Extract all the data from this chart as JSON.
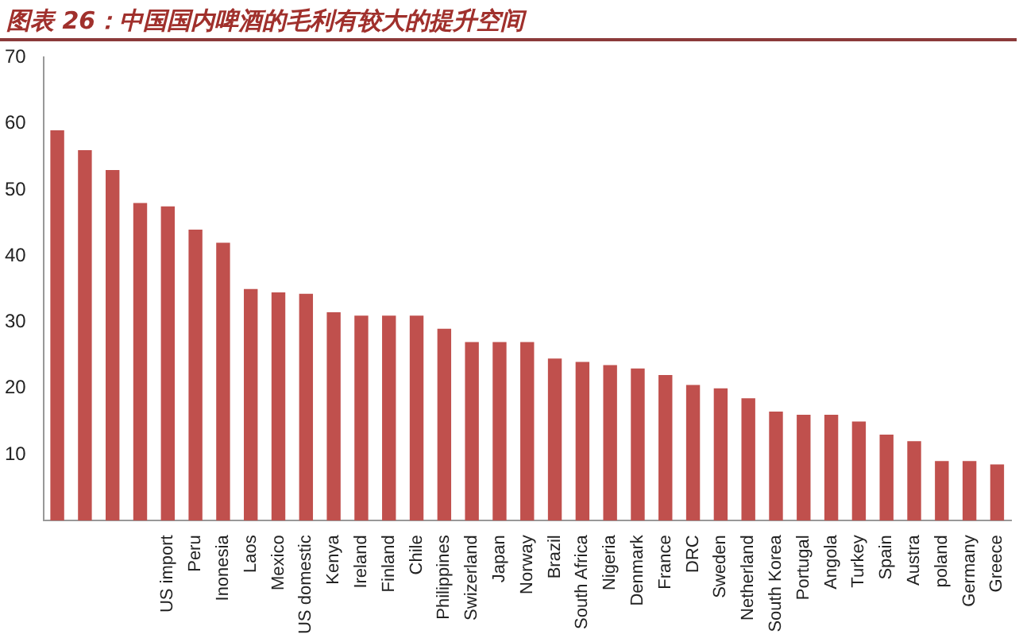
{
  "chart_data": {
    "type": "bar",
    "title": "图表 26：中国国内啤酒的毛利有较大的提升空间",
    "categories": [
      null,
      null,
      null,
      null,
      "US import",
      "Peru",
      "Inonesia",
      "Laos",
      "Mexico",
      "US domestic",
      "Kenya",
      "Ireland",
      "Finland",
      "Chile",
      "Philippines",
      "Swizerland",
      "Japan",
      "Norway",
      "Brazil",
      "South Africa",
      "Nigeria",
      "Denmark",
      "France",
      "DRC",
      "Sweden",
      "Netherland",
      "South Korea",
      "Portugal",
      "Angola",
      "Turkey",
      "Spain",
      "Austra",
      "poland",
      "Germany",
      "Greece"
    ],
    "values": [
      59,
      56,
      53,
      48,
      47.5,
      44,
      42,
      35,
      34.5,
      34.3,
      31.5,
      31,
      31,
      31,
      29,
      27,
      27,
      27,
      24.5,
      24,
      23.5,
      23,
      22,
      20.5,
      20,
      18.5,
      16.5,
      16,
      16,
      15,
      13,
      12,
      9,
      9,
      8.5
    ],
    "color": "#c0504d",
    "ylim": [
      0,
      70
    ],
    "yticks": [
      10,
      20,
      30,
      40,
      50,
      60,
      70
    ],
    "grid": false
  }
}
